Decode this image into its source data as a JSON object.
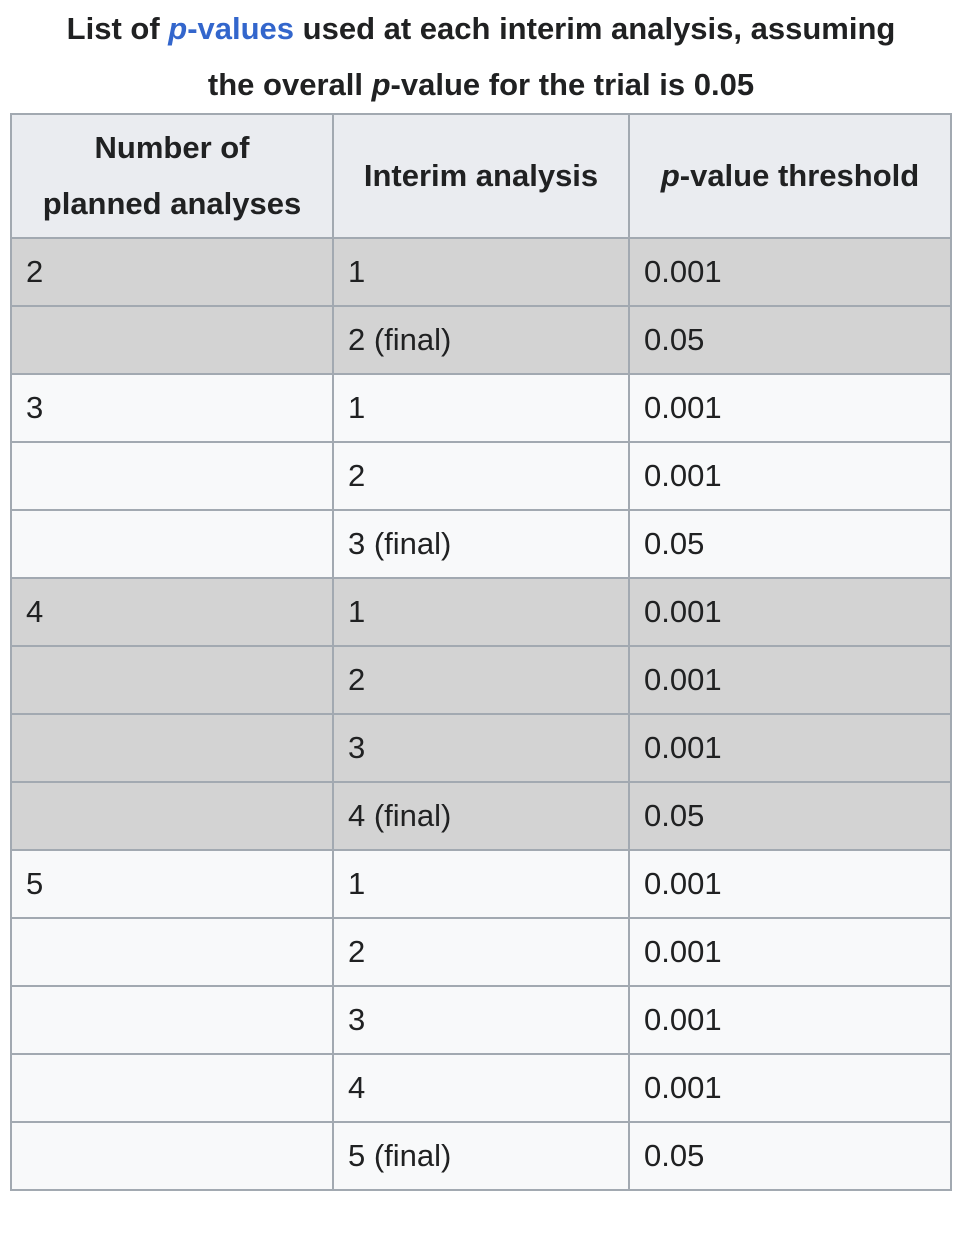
{
  "caption": {
    "prefix": "List of ",
    "link_p": "p",
    "link_rest": "-values",
    "line1_rest": " used at each interim analysis, assuming",
    "line2_prefix": "the overall ",
    "line2_p": "p",
    "line2_rest": "-value for the trial is 0.05"
  },
  "headers": {
    "col1_line1": "Number of",
    "col1_line2": "planned analyses",
    "col2": "Interim analysis",
    "col3_p": "p",
    "col3_rest": "-value threshold"
  },
  "rows": [
    {
      "planned": "2",
      "interim": "1",
      "threshold": "0.001",
      "shade": true
    },
    {
      "planned": "",
      "interim": "2 (final)",
      "threshold": "0.05",
      "shade": true
    },
    {
      "planned": "3",
      "interim": "1",
      "threshold": "0.001",
      "shade": false
    },
    {
      "planned": "",
      "interim": "2",
      "threshold": "0.001",
      "shade": false
    },
    {
      "planned": "",
      "interim": "3 (final)",
      "threshold": "0.05",
      "shade": false
    },
    {
      "planned": "4",
      "interim": "1",
      "threshold": "0.001",
      "shade": true
    },
    {
      "planned": "",
      "interim": "2",
      "threshold": "0.001",
      "shade": true
    },
    {
      "planned": "",
      "interim": "3",
      "threshold": "0.001",
      "shade": true
    },
    {
      "planned": "",
      "interim": "4 (final)",
      "threshold": "0.05",
      "shade": true
    },
    {
      "planned": "5",
      "interim": "1",
      "threshold": "0.001",
      "shade": false
    },
    {
      "planned": "",
      "interim": "2",
      "threshold": "0.001",
      "shade": false
    },
    {
      "planned": "",
      "interim": "3",
      "threshold": "0.001",
      "shade": false
    },
    {
      "planned": "",
      "interim": "4",
      "threshold": "0.001",
      "shade": false
    },
    {
      "planned": "",
      "interim": "5 (final)",
      "threshold": "0.05",
      "shade": false
    }
  ],
  "colors": {
    "link": "#3366cc",
    "header_bg": "#eaecf0",
    "shade_bg": "#d3d3d3",
    "plain_bg": "#f8f9fa",
    "border": "#a2a9b1"
  }
}
